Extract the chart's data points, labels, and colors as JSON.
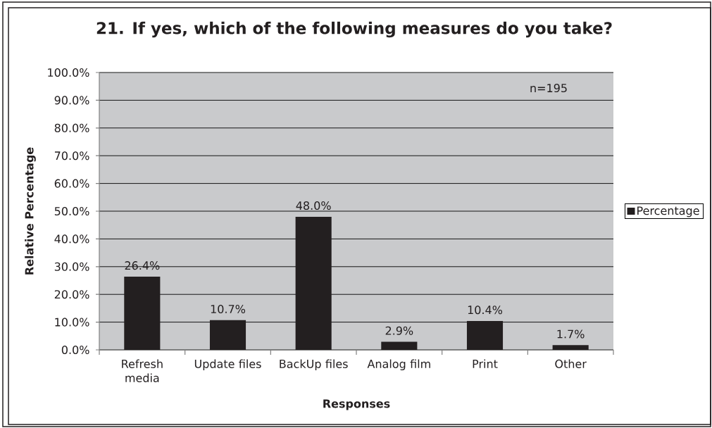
{
  "chart_data": {
    "type": "bar",
    "title": "21. If yes, which of the following measures do you take?",
    "xlabel": "Responses",
    "ylabel": "Relative Percentage",
    "categories": [
      "Refresh media",
      "Update files",
      "BackUp files",
      "Analog film",
      "Print",
      "Other"
    ],
    "series": [
      {
        "name": "Percentage",
        "color": "#231f20",
        "values": [
          26.4,
          10.7,
          48.0,
          2.9,
          10.4,
          1.7
        ],
        "value_labels": [
          "26.4%",
          "10.7%",
          "48.0%",
          "2.9%",
          "10.4%",
          "1.7%"
        ]
      }
    ],
    "ylim": [
      0,
      100
    ],
    "yticks": [
      {
        "value": 0,
        "label": "0.0%"
      },
      {
        "value": 10,
        "label": "10.0%"
      },
      {
        "value": 20,
        "label": "20.0%"
      },
      {
        "value": 30,
        "label": "30.0%"
      },
      {
        "value": 40,
        "label": "40.0%"
      },
      {
        "value": 50,
        "label": "50.0%"
      },
      {
        "value": 60,
        "label": "60.0%"
      },
      {
        "value": 70,
        "label": "70.0%"
      },
      {
        "value": 80,
        "label": "80.0%"
      },
      {
        "value": 90,
        "label": "90.0%"
      },
      {
        "value": 100,
        "label": "100.0%"
      }
    ],
    "grid": "y",
    "legend": "right",
    "annotations": [
      "n=195"
    ]
  }
}
